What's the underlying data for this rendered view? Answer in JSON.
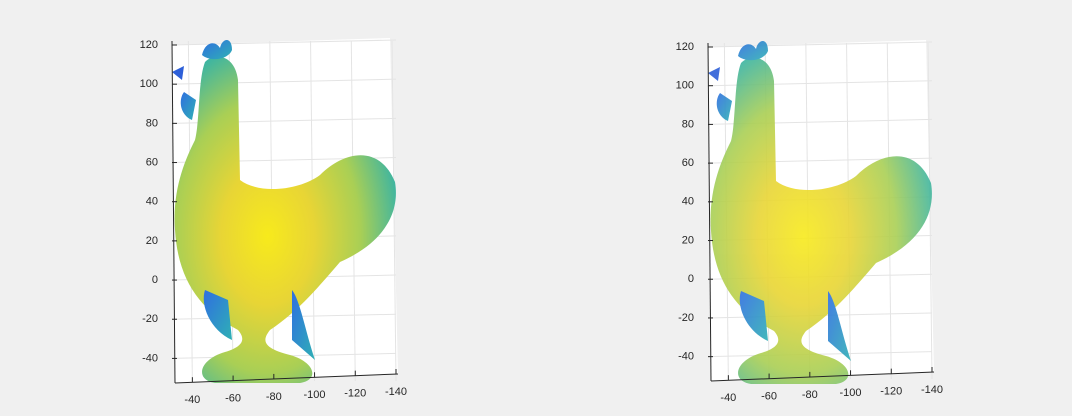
{
  "chart_data": [
    {
      "type": "scatter",
      "xlim": [
        -30,
        -140
      ],
      "ylim": [
        -50,
        120
      ],
      "xticks": [
        -40,
        -60,
        -80,
        -100,
        -120,
        -140
      ],
      "yticks": [
        -40,
        -20,
        0,
        20,
        40,
        60,
        80,
        100,
        120
      ],
      "grid": true
    },
    {
      "type": "scatter",
      "xlim": [
        -30,
        -140
      ],
      "ylim": [
        -50,
        120
      ],
      "xticks": [
        -40,
        -60,
        -80,
        -100,
        -120,
        -140
      ],
      "yticks": [
        -40,
        -20,
        0,
        20,
        40,
        60,
        80,
        100,
        120
      ],
      "grid": true
    }
  ]
}
